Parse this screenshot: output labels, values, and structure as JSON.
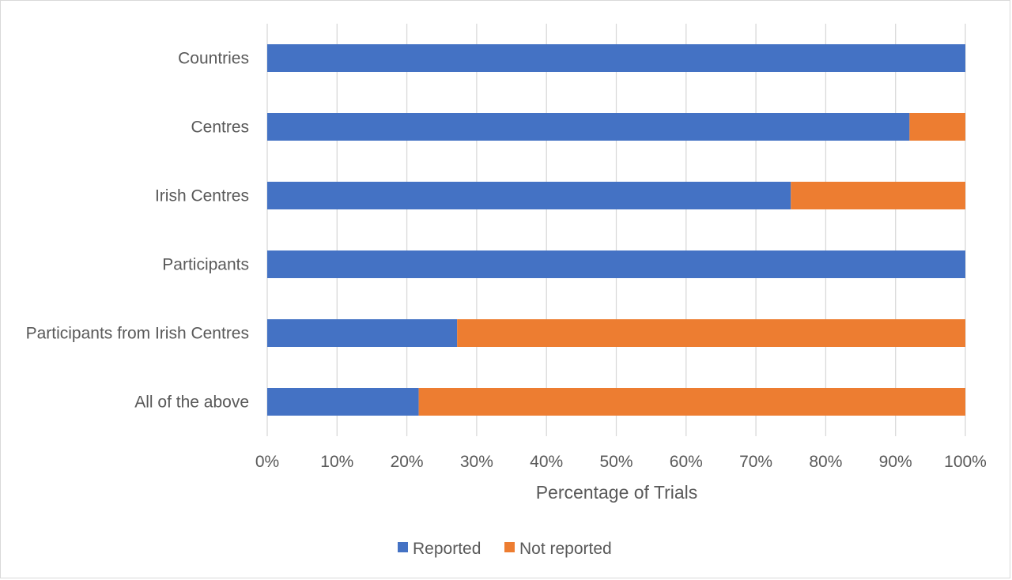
{
  "chart_data": {
    "type": "bar",
    "orientation": "horizontal",
    "stacked": true,
    "categories": [
      "Countries",
      "Centres",
      "Irish Centres",
      "Participants",
      "Participants from Irish Centres",
      "All of the above"
    ],
    "series": [
      {
        "name": "Reported",
        "color": "#4472c4",
        "values": [
          100,
          92,
          75,
          100,
          27.2,
          21.7
        ]
      },
      {
        "name": "Not reported",
        "color": "#ed7d31",
        "values": [
          0,
          8,
          25,
          0,
          72.8,
          78.3
        ]
      }
    ],
    "xlim": [
      0,
      100
    ],
    "xticks": [
      0,
      10,
      20,
      30,
      40,
      50,
      60,
      70,
      80,
      90,
      100
    ],
    "tick_labels": [
      "0%",
      "10%",
      "20%",
      "30%",
      "40%",
      "50%",
      "60%",
      "70%",
      "80%",
      "90%",
      "100%"
    ],
    "xlabel": "Percentage of Trials",
    "ylabel": "",
    "title": "",
    "grid": "vertical",
    "legend": "bottom"
  }
}
